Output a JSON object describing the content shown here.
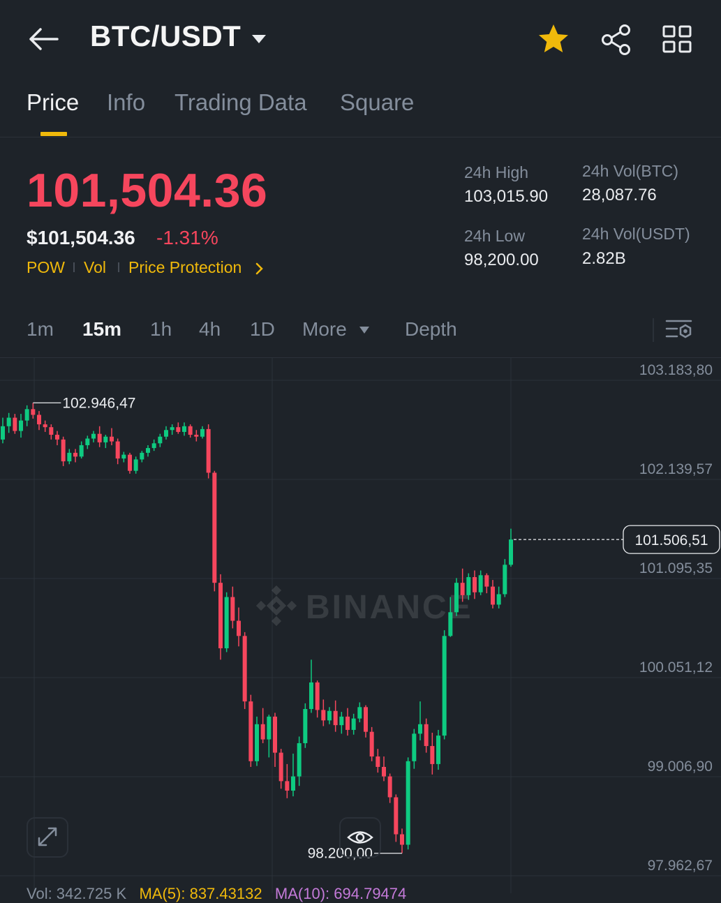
{
  "header": {
    "pair": "BTC/USDT"
  },
  "tabs": [
    {
      "label": "Price",
      "active": true
    },
    {
      "label": "Info",
      "active": false
    },
    {
      "label": "Trading Data",
      "active": false
    },
    {
      "label": "Square",
      "active": false
    }
  ],
  "price": {
    "last": "101,504.36",
    "usd": "$101,504.36",
    "change_pct": "-1.31%",
    "tags": [
      "POW",
      "Vol",
      "Price Protection"
    ]
  },
  "stats": {
    "high_label": "24h High",
    "high_value": "103,015.90",
    "low_label": "24h Low",
    "low_value": "98,200.00",
    "vol_btc_label": "24h Vol(BTC)",
    "vol_btc_value": "28,087.76",
    "vol_usdt_label": "24h Vol(USDT)",
    "vol_usdt_value": "2.82B"
  },
  "intervals": {
    "items": [
      "1m",
      "15m",
      "1h",
      "4h",
      "1D",
      "More",
      "Depth"
    ],
    "active": "15m"
  },
  "chart": {
    "watermark": "BINANCE",
    "price_ticks": [
      "103.183,80",
      "102.139,57",
      "101.095,35",
      "100.051,12",
      "99.006,90",
      "97.962,67"
    ],
    "current_price": "101.506,51",
    "high_marker": "102.946,47",
    "low_marker": "98.200,00",
    "volume_line": {
      "vol": "Vol: 342.725 K",
      "ma5": "MA(5): 837.43132",
      "ma10": "MA(10): 694.79474"
    }
  },
  "colors": {
    "up": "#0ecb81",
    "down": "#f6465d",
    "accent": "#f0b90b",
    "background": "#1e2329"
  },
  "chart_data": {
    "type": "candlestick",
    "interval": "15m",
    "y_ticks": [
      103183.8,
      102139.57,
      101095.35,
      100051.12,
      99006.9,
      97962.67
    ],
    "ylim": [
      97962.67,
      103183.8
    ],
    "candles": [
      [
        102560,
        102790,
        102520,
        102700
      ],
      [
        102700,
        102840,
        102630,
        102790
      ],
      [
        102790,
        102830,
        102620,
        102650
      ],
      [
        102650,
        102830,
        102580,
        102760
      ],
      [
        102760,
        102920,
        102700,
        102880
      ],
      [
        102880,
        102946.47,
        102780,
        102820
      ],
      [
        102820,
        102860,
        102660,
        102720
      ],
      [
        102720,
        102760,
        102640,
        102690
      ],
      [
        102690,
        102720,
        102560,
        102610
      ],
      [
        102610,
        102650,
        102500,
        102560
      ],
      [
        102560,
        102590,
        102280,
        102330
      ],
      [
        102330,
        102460,
        102300,
        102420
      ],
      [
        102420,
        102460,
        102320,
        102380
      ],
      [
        102380,
        102540,
        102360,
        102500
      ],
      [
        102500,
        102600,
        102460,
        102570
      ],
      [
        102570,
        102650,
        102530,
        102620
      ],
      [
        102620,
        102700,
        102480,
        102530
      ],
      [
        102530,
        102610,
        102470,
        102590
      ],
      [
        102590,
        102680,
        102500,
        102540
      ],
      [
        102540,
        102570,
        102300,
        102360
      ],
      [
        102360,
        102430,
        102320,
        102400
      ],
      [
        102400,
        102420,
        102200,
        102230
      ],
      [
        102230,
        102380,
        102200,
        102350
      ],
      [
        102350,
        102440,
        102320,
        102420
      ],
      [
        102420,
        102500,
        102380,
        102470
      ],
      [
        102470,
        102560,
        102440,
        102520
      ],
      [
        102520,
        102620,
        102480,
        102590
      ],
      [
        102590,
        102700,
        102560,
        102660
      ],
      [
        102660,
        102720,
        102610,
        102690
      ],
      [
        102690,
        102740,
        102620,
        102640
      ],
      [
        102640,
        102740,
        102600,
        102700
      ],
      [
        102700,
        102720,
        102580,
        102610
      ],
      [
        102610,
        102660,
        102540,
        102590
      ],
      [
        102590,
        102700,
        102570,
        102670
      ],
      [
        102670,
        102720,
        102150,
        102210
      ],
      [
        102210,
        102230,
        100960,
        101050
      ],
      [
        101050,
        101140,
        100240,
        100360
      ],
      [
        100360,
        100950,
        100320,
        100900
      ],
      [
        100900,
        101010,
        100570,
        100650
      ],
      [
        100650,
        100790,
        100380,
        100490
      ],
      [
        100490,
        100530,
        99720,
        99800
      ],
      [
        99800,
        99870,
        99110,
        99170
      ],
      [
        99170,
        99640,
        99120,
        99560
      ],
      [
        99560,
        99730,
        99360,
        99400
      ],
      [
        99400,
        99660,
        99210,
        99640
      ],
      [
        99640,
        99680,
        99110,
        99260
      ],
      [
        99260,
        99300,
        98880,
        98960
      ],
      [
        98960,
        99140,
        98780,
        98860
      ],
      [
        98860,
        99250,
        98800,
        99010
      ],
      [
        99010,
        99430,
        98910,
        99360
      ],
      [
        99360,
        99780,
        99310,
        99720
      ],
      [
        99720,
        100240,
        99680,
        100000
      ],
      [
        100000,
        100020,
        99630,
        99710
      ],
      [
        99710,
        99820,
        99540,
        99600
      ],
      [
        99600,
        99740,
        99560,
        99700
      ],
      [
        99700,
        99810,
        99480,
        99550
      ],
      [
        99550,
        99690,
        99460,
        99640
      ],
      [
        99640,
        99730,
        99440,
        99500
      ],
      [
        99500,
        99670,
        99450,
        99620
      ],
      [
        99620,
        99790,
        99580,
        99740
      ],
      [
        99740,
        99760,
        99420,
        99480
      ],
      [
        99480,
        99530,
        99170,
        99220
      ],
      [
        99220,
        99300,
        99050,
        99110
      ],
      [
        99110,
        99220,
        98960,
        99010
      ],
      [
        99010,
        99040,
        98730,
        98790
      ],
      [
        98790,
        98820,
        98320,
        98400
      ],
      [
        98400,
        98460,
        98200.0,
        98290
      ],
      [
        98290,
        99210,
        98240,
        99170
      ],
      [
        99170,
        99510,
        99090,
        99460
      ],
      [
        99460,
        99800,
        99390,
        99560
      ],
      [
        99560,
        99620,
        99260,
        99330
      ],
      [
        99330,
        99470,
        99030,
        99140
      ],
      [
        99140,
        99500,
        99080,
        99440
      ],
      [
        99440,
        100550,
        99400,
        100490
      ],
      [
        100490,
        100900,
        100480,
        100740
      ],
      [
        100740,
        101100,
        100700,
        101050
      ],
      [
        101050,
        101200,
        100850,
        100920
      ],
      [
        100920,
        101150,
        100870,
        101110
      ],
      [
        101110,
        101180,
        100880,
        100950
      ],
      [
        100950,
        101180,
        100920,
        101130
      ],
      [
        101130,
        101150,
        100940,
        101010
      ],
      [
        101010,
        101080,
        100780,
        100820
      ],
      [
        100820,
        101010,
        100780,
        100930
      ],
      [
        100930,
        101300,
        100900,
        101240
      ],
      [
        101240,
        101620,
        101220,
        101506.51
      ]
    ]
  }
}
